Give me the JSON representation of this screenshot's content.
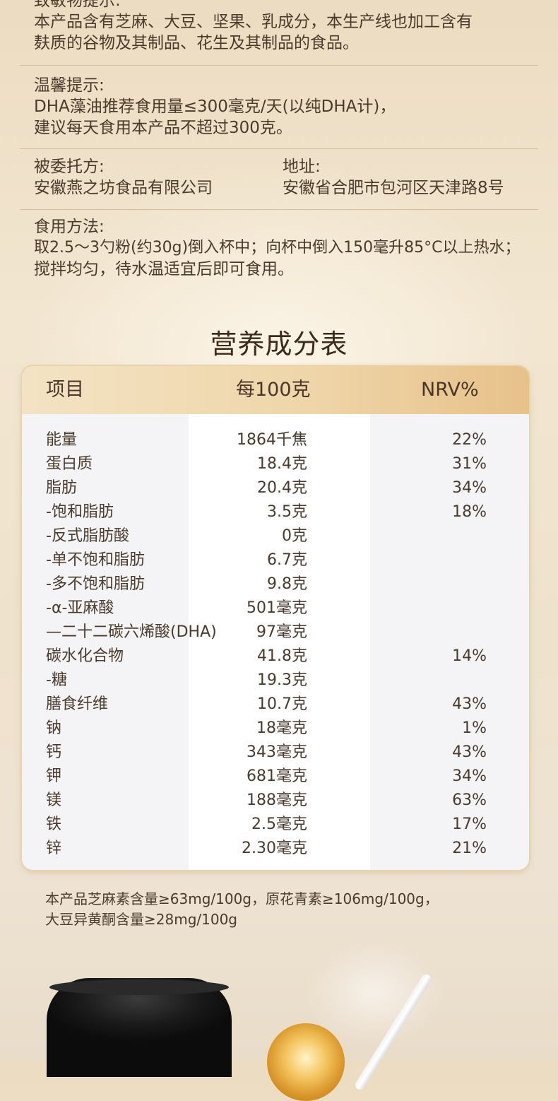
{
  "allergen": {
    "title": "致敏物提示:",
    "line1": "本产品含有芝麻、大豆、坚果、乳成分，本生产线也加工含有",
    "line2": "麸质的谷物及其制品、花生及其制品的食品。"
  },
  "tips": {
    "title": "温馨提示:",
    "line1": "DHA藻油推荐食用量≤300毫克/天(以纯DHA计)，",
    "line2": "建议每天食用本产品不超过300克。"
  },
  "entrusted": {
    "label": "被委托方:",
    "value": "安徽燕之坊食品有限公司"
  },
  "address": {
    "label": "地址:",
    "value": "安徽省合肥市包河区天津路8号"
  },
  "usage": {
    "title": "食用方法:",
    "line1": "取2.5～3勺粉(约30g)倒入杯中；向杯中倒入150毫升85°C以上热水；",
    "line2": "搅拌均匀，待水温适宜后即可食用。"
  },
  "nutrition": {
    "title": "营养成分表",
    "headers": [
      "项目",
      "每100克",
      "NRV%"
    ],
    "rows": [
      [
        "能量",
        "1864千焦",
        "22%"
      ],
      [
        "蛋白质",
        "18.4克",
        "31%"
      ],
      [
        "脂肪",
        "20.4克",
        "34%"
      ],
      [
        "-饱和脂肪",
        "3.5克",
        "18%"
      ],
      [
        "-反式脂肪酸",
        "0克",
        ""
      ],
      [
        "-单不饱和脂肪",
        "6.7克",
        ""
      ],
      [
        "-多不饱和脂肪",
        "9.8克",
        ""
      ],
      [
        "-α-亚麻酸",
        "501毫克",
        ""
      ],
      [
        "—二十二碳六烯酸(DHA)",
        "97毫克",
        ""
      ],
      [
        "碳水化合物",
        "41.8克",
        "14%"
      ],
      [
        "-糖",
        "19.3克",
        ""
      ],
      [
        "膳食纤维",
        "10.7克",
        "43%"
      ],
      [
        "钠",
        "18毫克",
        "1%"
      ],
      [
        "钙",
        "343毫克",
        "43%"
      ],
      [
        "钾",
        "681毫克",
        "34%"
      ],
      [
        "镁",
        "188毫克",
        "63%"
      ],
      [
        "铁",
        "2.5毫克",
        "17%"
      ],
      [
        "锌",
        "2.30毫克",
        "21%"
      ]
    ]
  },
  "note": {
    "line1": "本产品芝麻素含量≥63mg/100g，原花青素≥106mg/100g，",
    "line2": "大豆异黄酮含量≥28mg/100g"
  },
  "colors": {
    "accent": "#e7c18a",
    "text": "#4a3a2c",
    "heading": "#3d2a1c"
  }
}
